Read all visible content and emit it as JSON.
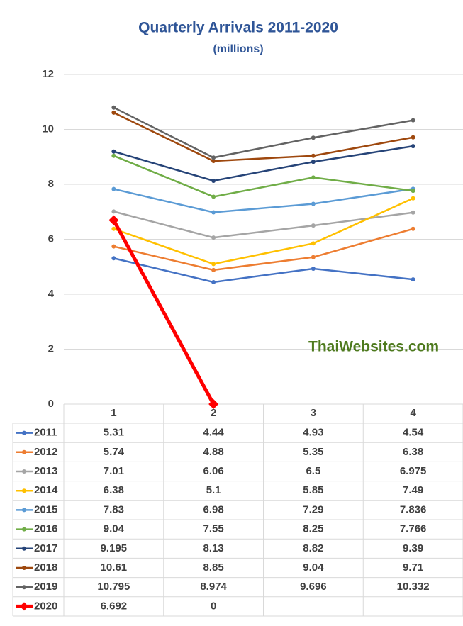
{
  "chart_data": {
    "type": "line",
    "title": "Quarterly Arrivals 2011-2020",
    "subtitle": "(millions)",
    "annotation": "ThaiWebsites.com",
    "categories": [
      "1",
      "2",
      "3",
      "4"
    ],
    "ylim": [
      0,
      12
    ],
    "yticks": [
      0,
      2,
      4,
      6,
      8,
      10,
      12
    ],
    "grid": true,
    "data_table": true,
    "series": [
      {
        "name": "2011",
        "color": "#4472c4",
        "marker": "circle",
        "values": [
          5.31,
          4.44,
          4.93,
          4.54
        ]
      },
      {
        "name": "2012",
        "color": "#ed7d31",
        "marker": "circle",
        "values": [
          5.74,
          4.88,
          5.35,
          6.38
        ]
      },
      {
        "name": "2013",
        "color": "#a5a5a5",
        "marker": "circle",
        "values": [
          7.01,
          6.06,
          6.5,
          6.975
        ]
      },
      {
        "name": "2014",
        "color": "#ffc000",
        "marker": "circle",
        "values": [
          6.38,
          5.1,
          5.85,
          7.49
        ]
      },
      {
        "name": "2015",
        "color": "#5b9bd5",
        "marker": "circle",
        "values": [
          7.83,
          6.98,
          7.29,
          7.836
        ]
      },
      {
        "name": "2016",
        "color": "#70ad47",
        "marker": "circle",
        "values": [
          9.04,
          7.55,
          8.25,
          7.766
        ]
      },
      {
        "name": "2017",
        "color": "#264478",
        "marker": "circle",
        "values": [
          9.195,
          8.13,
          8.82,
          9.39
        ]
      },
      {
        "name": "2018",
        "color": "#9e480e",
        "marker": "circle",
        "values": [
          10.61,
          8.85,
          9.04,
          9.71
        ]
      },
      {
        "name": "2019",
        "color": "#636363",
        "marker": "circle",
        "values": [
          10.795,
          8.974,
          9.696,
          10.332
        ]
      },
      {
        "name": "2020",
        "color": "#ff0000",
        "marker": "diamond",
        "values": [
          6.692,
          0,
          null,
          null
        ]
      }
    ]
  }
}
